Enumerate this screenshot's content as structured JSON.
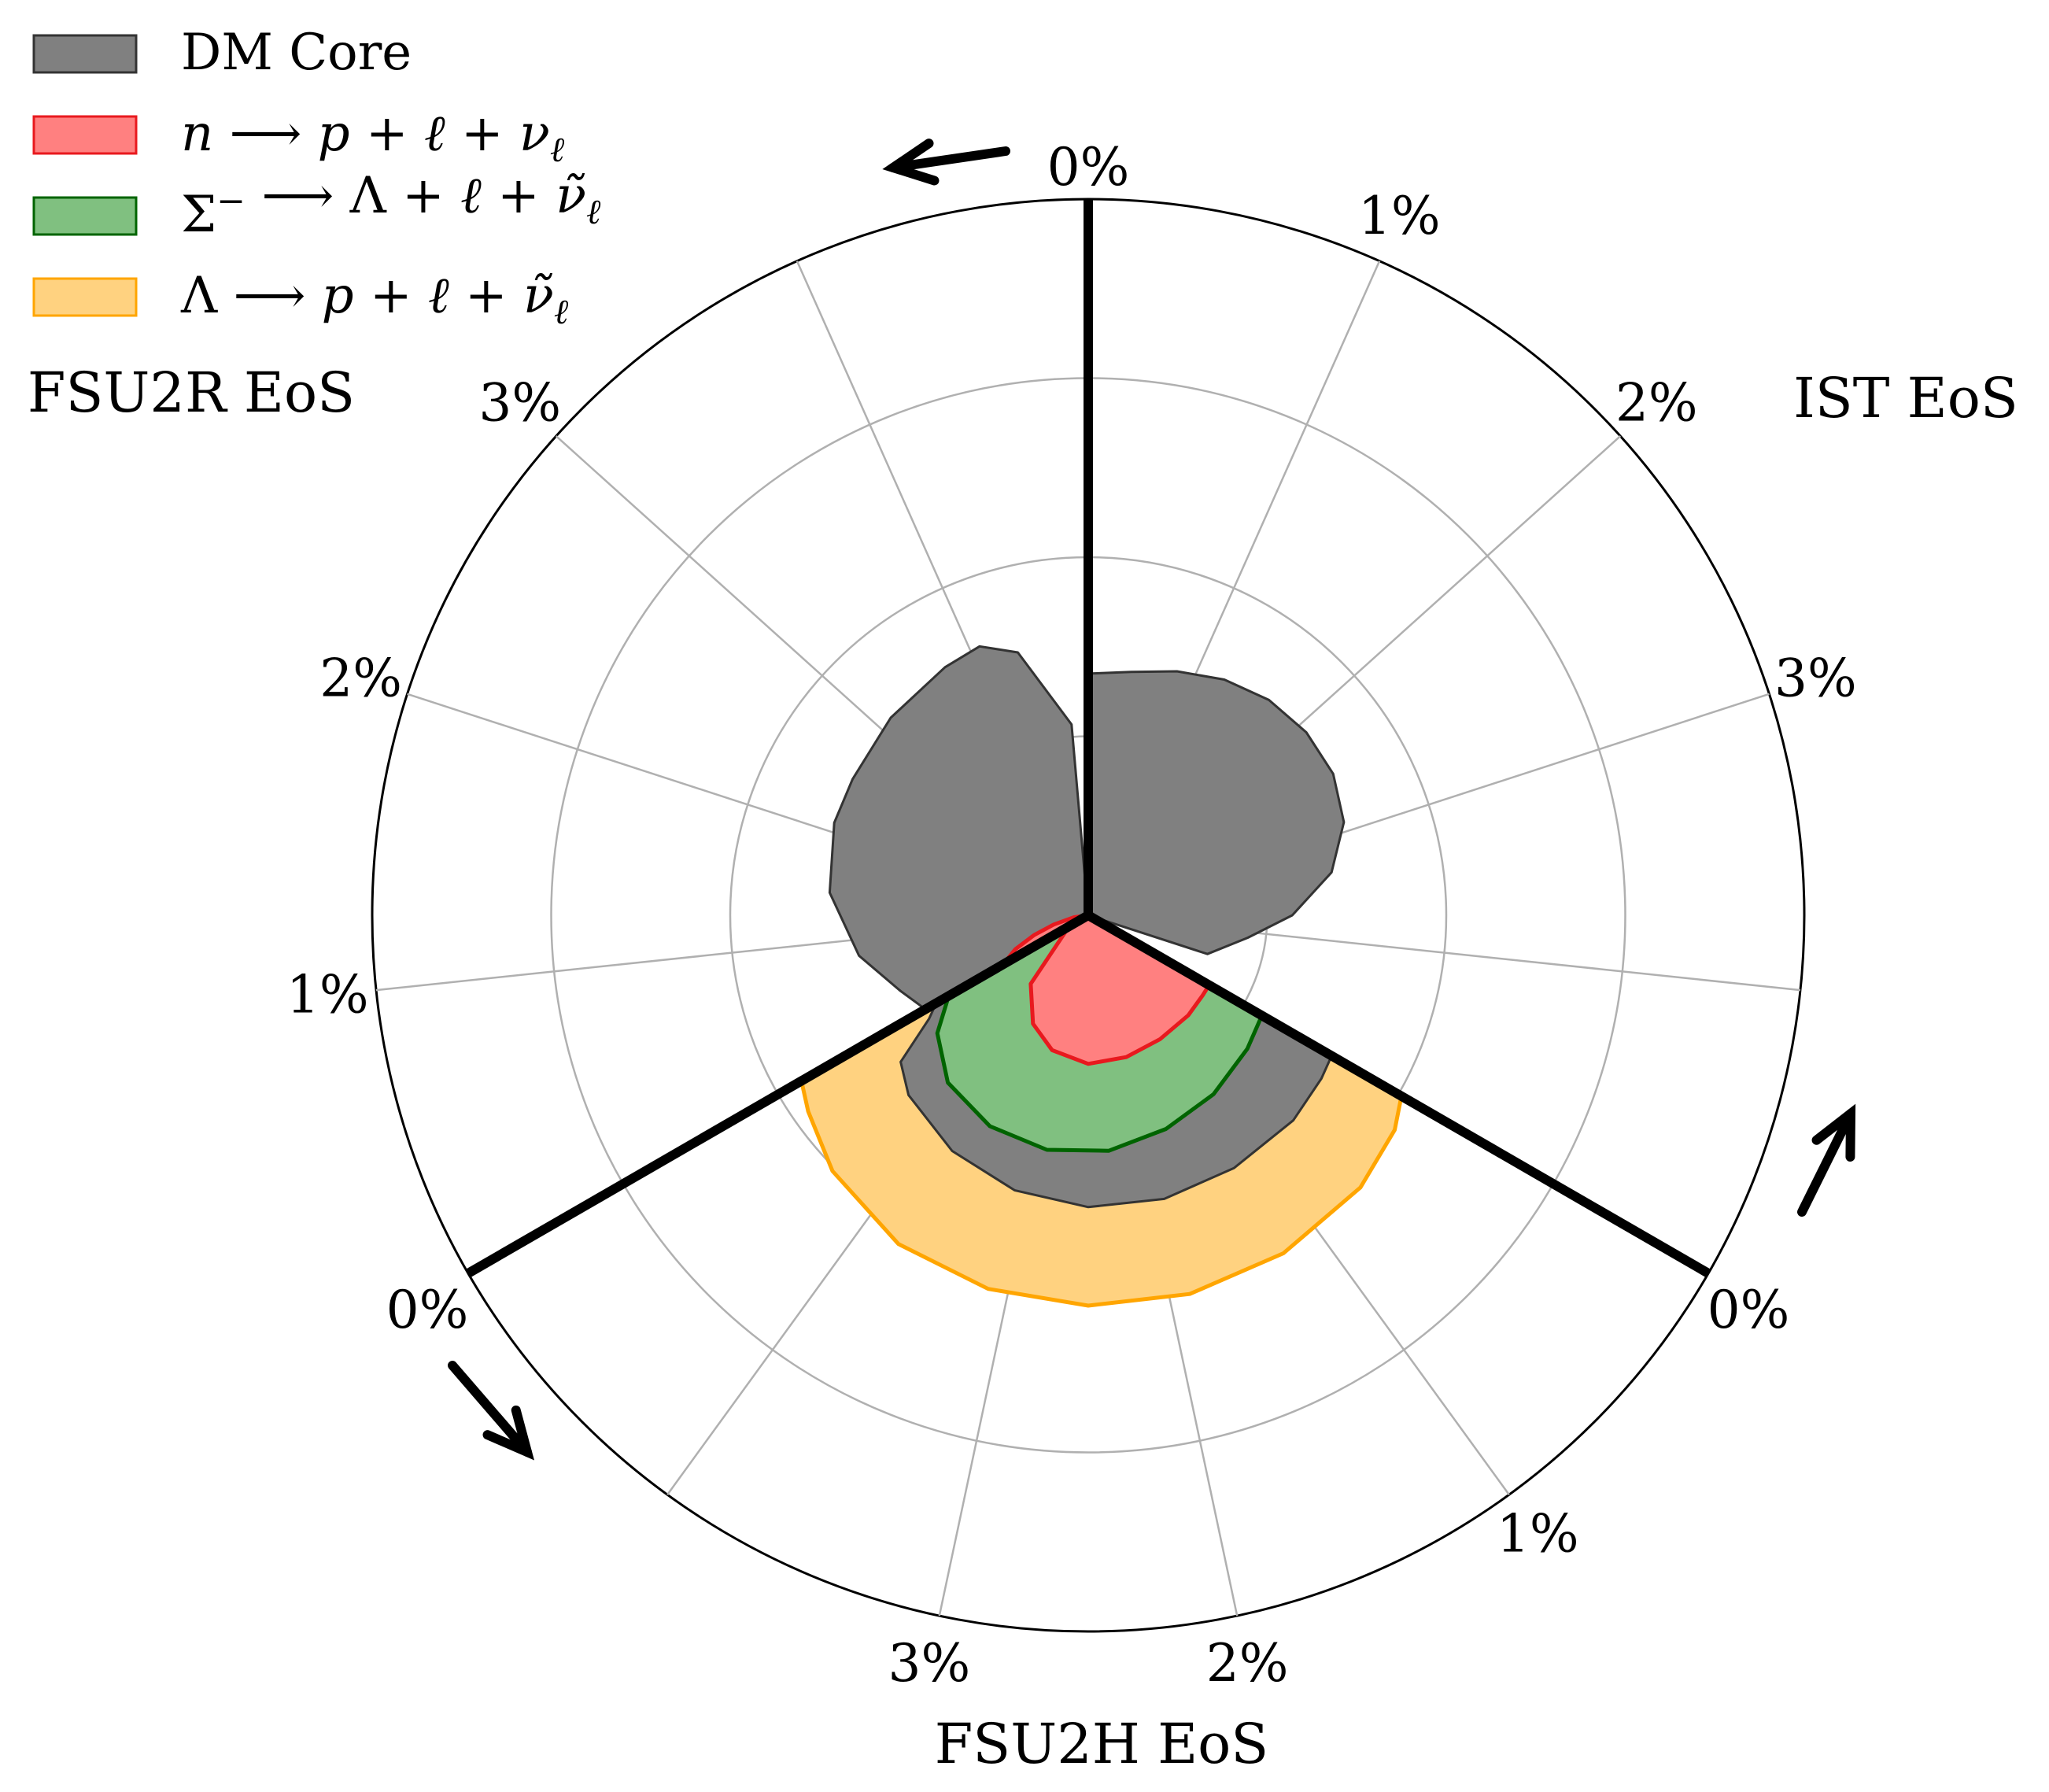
{
  "chart_data": {
    "type": "polar-area",
    "title": "",
    "radial_ticks_per_sector": [
      "0%",
      "1%",
      "2%",
      "3%"
    ],
    "grid": true,
    "legend": {
      "placement": "top-left",
      "entries": [
        {
          "id": "dm",
          "label": "DM Core",
          "color": "#808080"
        },
        {
          "id": "n",
          "label": "n ⟶ p + ℓ + ν_ℓ",
          "color": "#ff8080",
          "parts": [
            {
              "t": "n",
              "s": "math"
            },
            {
              "t": " ⟶ ",
              "s": "sym"
            },
            {
              "t": "p",
              "s": "math"
            },
            {
              "t": " + ",
              "s": "sym"
            },
            {
              "t": "ℓ",
              "s": "math"
            },
            {
              "t": " + ",
              "s": "sym"
            },
            {
              "t": "ν",
              "s": "math"
            },
            {
              "t": "ℓ",
              "s": "sub"
            }
          ]
        },
        {
          "id": "sigma",
          "label": "Σ⁻ ⟶ Λ + ℓ + ν̃_ℓ",
          "color": "#80c080",
          "parts": [
            {
              "t": "Σ",
              "s": "sym"
            },
            {
              "t": "−",
              "s": "sup"
            },
            {
              "t": " ⟶ Λ + ",
              "s": "sym"
            },
            {
              "t": "ℓ",
              "s": "math"
            },
            {
              "t": " + ",
              "s": "sym"
            },
            {
              "t": "ν̃",
              "s": "math"
            },
            {
              "t": "ℓ",
              "s": "sub"
            }
          ]
        },
        {
          "id": "lambda",
          "label": "Λ ⟶ p + ℓ + ν̃_ℓ",
          "color": "#ffd280",
          "parts": [
            {
              "t": "Λ ⟶ ",
              "s": "sym"
            },
            {
              "t": "p",
              "s": "math"
            },
            {
              "t": " + ",
              "s": "sym"
            },
            {
              "t": "ℓ",
              "s": "math"
            },
            {
              "t": " + ",
              "s": "sym"
            },
            {
              "t": "ν̃",
              "s": "math"
            },
            {
              "t": "ℓ",
              "s": "sub"
            }
          ]
        }
      ]
    },
    "sectors": [
      {
        "name": "IST EoS",
        "start_angle_deg": 0,
        "direction": "clockwise",
        "layers": [
          {
            "id": "dm",
            "theta_deg": [
              0,
              10,
              20,
              30,
              40,
              50,
              60,
              70,
              80,
              90,
              98,
              108,
              112
            ],
            "r": [
              1.35,
              1.38,
              1.45,
              1.52,
              1.57,
              1.59,
              1.58,
              1.52,
              1.38,
              1.14,
              0.9,
              0.7,
              0.0
            ]
          }
        ]
      },
      {
        "name": "FSU2H EoS",
        "start_angle_deg": 120,
        "direction": "clockwise",
        "layers": [
          {
            "id": "lambda",
            "theta_deg": [
              0,
              5,
              15,
              30,
              45,
              60,
              75,
              90,
              105,
              115,
              120
            ],
            "r": [
              2.02,
              2.09,
              2.15,
              2.18,
              2.19,
              2.18,
              2.16,
              2.12,
              2.02,
              1.91,
              1.85
            ]
          },
          {
            "id": "dm",
            "theta_deg": [
              0,
              5,
              15,
              30,
              45,
              60,
              75,
              90,
              105,
              112,
              117,
              120
            ],
            "r": [
              1.57,
              1.59,
              1.62,
              1.63,
              1.64,
              1.63,
              1.59,
              1.52,
              1.42,
              1.33,
              1.06,
              0.98
            ]
          },
          {
            "id": "sigma",
            "theta_deg": [
              0,
              10,
              25,
              40,
              55,
              70,
              85,
              100,
              112,
              120
            ],
            "r": [
              1.12,
              1.16,
              1.22,
              1.27,
              1.32,
              1.33,
              1.3,
              1.22,
              1.07,
              0.9
            ]
          },
          {
            "id": "n",
            "theta_deg": [
              0,
              5,
              15,
              30,
              45,
              60,
              75,
              87,
              100,
              115,
              120
            ],
            "r": [
              0.78,
              0.78,
              0.79,
              0.8,
              0.82,
              0.83,
              0.78,
              0.68,
              0.5,
              0.15,
              0.0
            ]
          }
        ]
      },
      {
        "name": "FSU2R EoS",
        "start_angle_deg": 240,
        "direction": "clockwise",
        "layers": [
          {
            "id": "dm",
            "theta_deg": [
              0,
              8,
              20,
              35,
              50,
              60,
              75,
              90,
              98,
              105,
              115,
              120
            ],
            "r": [
              1.05,
              1.13,
              1.3,
              1.45,
              1.51,
              1.52,
              1.56,
              1.6,
              1.62,
              1.52,
              1.07,
              0.0
            ]
          },
          {
            "id": "n",
            "theta_deg": [
              0,
              5,
              10,
              15,
              22,
              30,
              115,
              118,
              120
            ],
            "r": [
              0.55,
              0.45,
              0.32,
              0.2,
              0.08,
              0.0,
              0.0,
              0.08,
              0.12
            ]
          }
        ]
      }
    ]
  },
  "labels": {
    "eos_ist": "IST EoS",
    "eos_fsu2h": "FSU2H EoS",
    "eos_fsu2r": "FSU2R EoS"
  },
  "colors": {
    "dm_edge": "#333333",
    "n_edge": "#e8191e",
    "sigma_edge": "#006400",
    "lambda_edge": "#ffa500",
    "grid": "#b0b0b0",
    "divider": "#000000"
  }
}
